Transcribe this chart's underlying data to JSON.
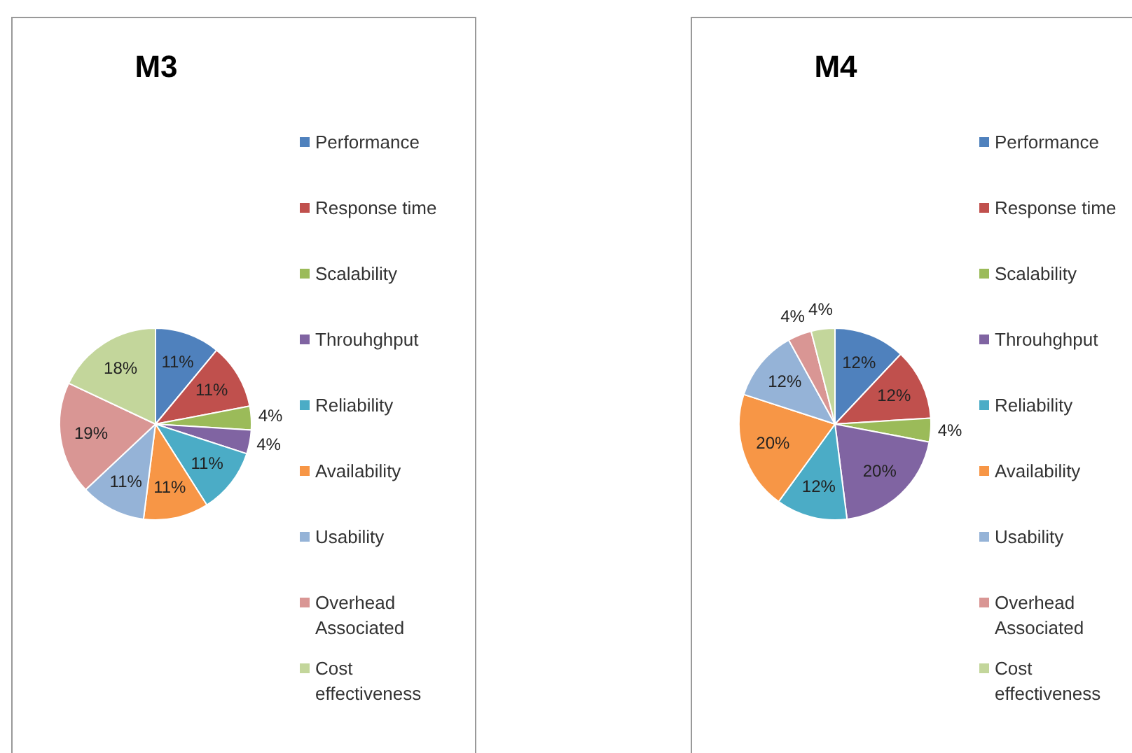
{
  "chart_data": [
    {
      "type": "pie",
      "title": "M3",
      "legend": "right",
      "categories": [
        "Performance",
        "Response time",
        "Scalability",
        "Throuhghput",
        "Reliability",
        "Availability",
        "Usability",
        "Overhead Associated",
        "Cost effectiveness"
      ],
      "values": [
        11,
        11,
        4,
        4,
        11,
        11,
        11,
        19,
        18
      ],
      "value_labels": [
        "11%",
        "11%",
        "4%",
        "4%",
        "11%",
        "11%",
        "11%",
        "19%",
        "18%"
      ],
      "colors": [
        "#4f81bd",
        "#c0504d",
        "#9bbb59",
        "#8064a2",
        "#4bacc6",
        "#f79646",
        "#95b3d7",
        "#d99694",
        "#c3d69b"
      ]
    },
    {
      "type": "pie",
      "title": "M4",
      "legend": "right",
      "categories": [
        "Performance",
        "Response time",
        "Scalability",
        "Throuhghput",
        "Reliability",
        "Availability",
        "Usability",
        "Overhead Associated",
        "Cost effectiveness"
      ],
      "values": [
        12,
        12,
        4,
        20,
        12,
        20,
        12,
        4,
        4
      ],
      "value_labels": [
        "12%",
        "12%",
        "4%",
        "20%",
        "12%",
        "20%",
        "12%",
        "4%",
        "4%"
      ],
      "colors": [
        "#4f81bd",
        "#c0504d",
        "#9bbb59",
        "#8064a2",
        "#4bacc6",
        "#f79646",
        "#95b3d7",
        "#d99694",
        "#c3d69b"
      ]
    }
  ]
}
